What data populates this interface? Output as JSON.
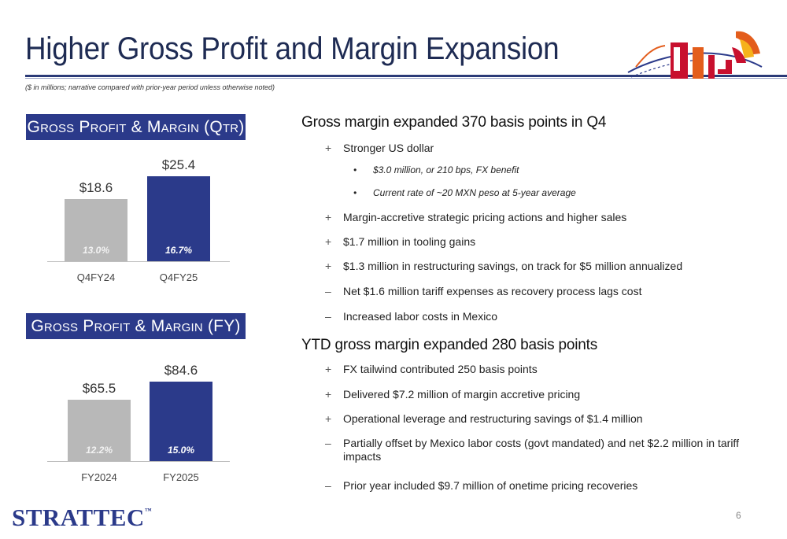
{
  "slide": {
    "title": "Higher Gross Profit and Margin Expansion",
    "subnote": "($ in millions; narrative compared with prior-year period unless otherwise noted)",
    "page_number": "6",
    "brand": "STRATTEC",
    "brand_tm": "™"
  },
  "chart_data": [
    {
      "type": "bar",
      "title": "Gross Profit & Margin (Qtr)",
      "categories": [
        "Q4FY24",
        "Q4FY25"
      ],
      "values": [
        18.6,
        25.4
      ],
      "value_labels": [
        "$18.6",
        "$25.4"
      ],
      "margins": [
        "13.0%",
        "16.7%"
      ],
      "colors": [
        "#b8b8b8",
        "#2b3a8a"
      ]
    },
    {
      "type": "bar",
      "title": "Gross Profit & Margin (FY)",
      "categories": [
        "FY2024",
        "FY2025"
      ],
      "values": [
        65.5,
        84.6
      ],
      "value_labels": [
        "$65.5",
        "$84.6"
      ],
      "margins": [
        "12.2%",
        "15.0%"
      ],
      "colors": [
        "#b8b8b8",
        "#2b3a8a"
      ]
    }
  ],
  "sections": [
    {
      "heading": "Gross margin expanded 370 basis points in Q4",
      "items": [
        {
          "mark": "+",
          "text": "Stronger US dollar"
        },
        {
          "mark": "•",
          "text": "$3.0 million, or 210 bps, FX benefit",
          "sub": true
        },
        {
          "mark": "•",
          "text": "Current rate of ~20 MXN peso at 5-year average",
          "sub": true
        },
        {
          "mark": "+",
          "text": "Margin-accretive strategic pricing actions and higher sales"
        },
        {
          "mark": "+",
          "text": "$1.7 million in tooling gains"
        },
        {
          "mark": "+",
          "text": "$1.3 million in restructuring savings, on track for $5 million annualized"
        },
        {
          "mark": "–",
          "text": "Net $1.6 million tariff expenses as recovery process lags cost"
        },
        {
          "mark": "–",
          "text": "Increased labor costs in Mexico"
        }
      ]
    },
    {
      "heading": "YTD gross margin expanded 280 basis points",
      "items": [
        {
          "mark": "+",
          "text": "FX tailwind contributed 250 basis points"
        },
        {
          "mark": "+",
          "text": "Delivered $7.2 million of margin accretive pricing"
        },
        {
          "mark": "+",
          "text": "Operational leverage and restructuring savings of $1.4 million"
        },
        {
          "mark": "–",
          "text": "Partially offset by Mexico labor costs (govt mandated) and net $2.2 million in tariff impacts"
        },
        {
          "mark": "–",
          "text": "Prior year included $9.7 million of onetime pricing recoveries"
        }
      ]
    }
  ]
}
